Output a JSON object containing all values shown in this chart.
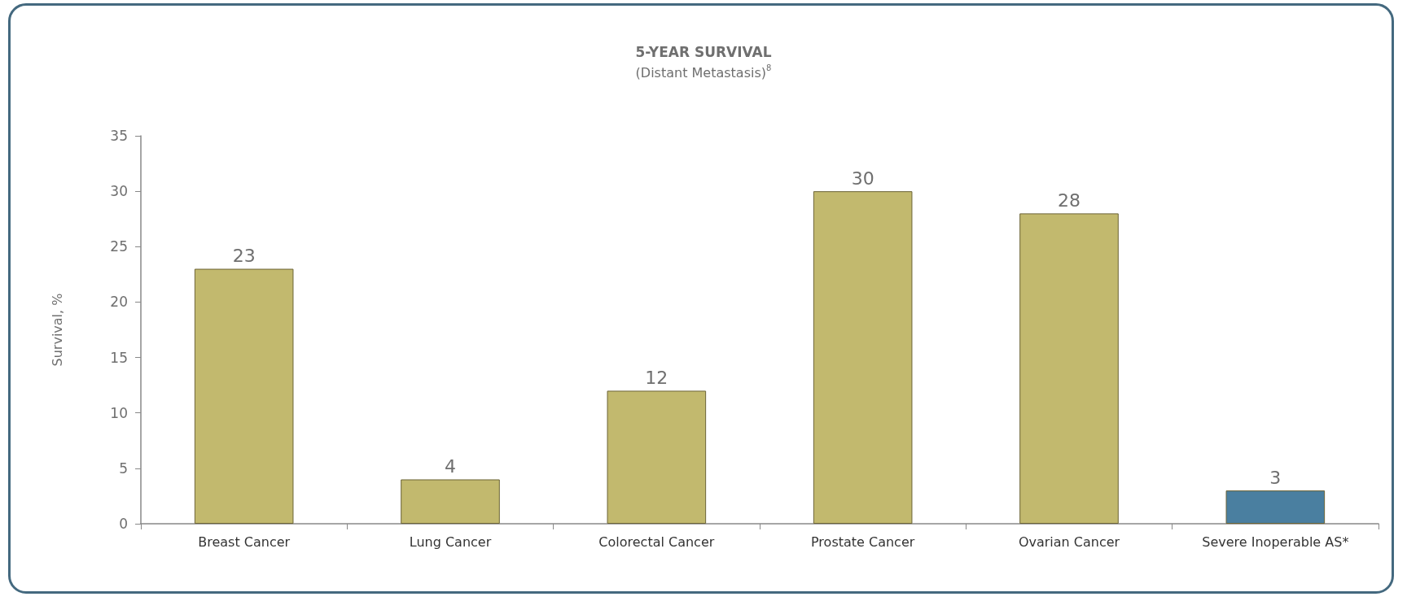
{
  "chart_data": {
    "type": "bar",
    "title": "5-YEAR SURVIVAL",
    "subtitle": "(Distant Metastasis)$^{8}$",
    "ylabel": "Survival, %",
    "categories": [
      "Breast Cancer",
      "Lung Cancer",
      "Colorectal Cancer",
      "Prostate Cancer",
      "Ovarian Cancer",
      "Severe Inoperable AS*"
    ],
    "values": [
      23,
      4,
      12,
      30,
      28,
      3
    ],
    "colors": [
      "#c2b96e",
      "#c2b96e",
      "#c2b96e",
      "#c2b96e",
      "#c2b96e",
      "#4a7fa0"
    ],
    "ylim": [
      0,
      35
    ],
    "yticks": [
      0,
      5,
      10,
      15,
      20,
      25,
      30,
      35
    ],
    "grid": false,
    "data_labels": true
  }
}
